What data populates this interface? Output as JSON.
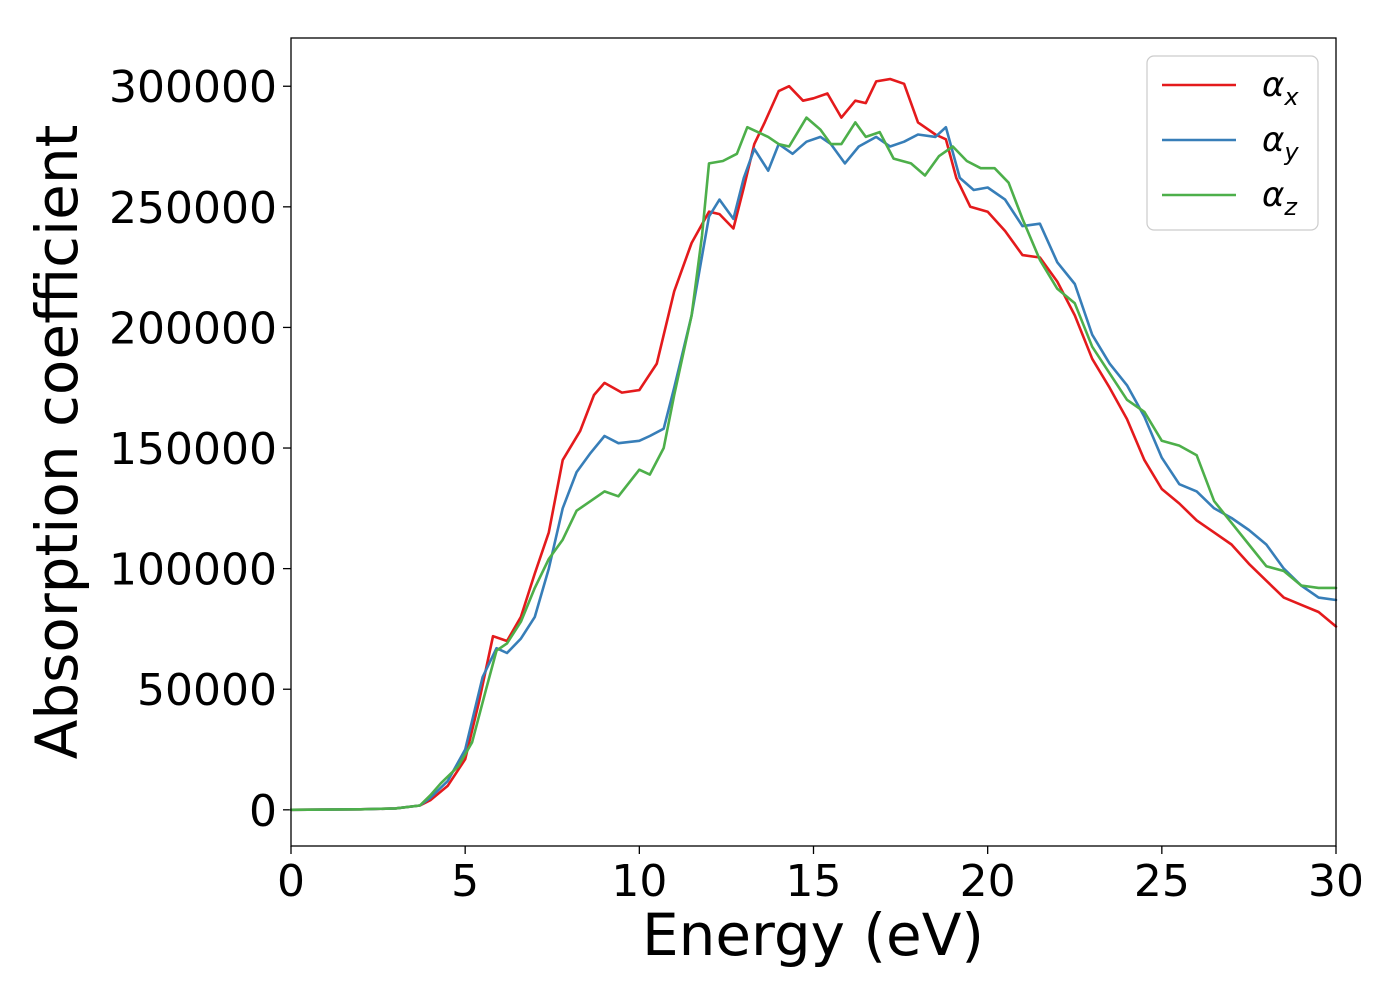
{
  "chart_data": {
    "type": "line",
    "title": "",
    "xlabel": "Energy (eV)",
    "ylabel": "Absorption coefficient",
    "xlim": [
      0,
      30
    ],
    "ylim": [
      -15000,
      320000
    ],
    "xticks": [
      0,
      5,
      10,
      15,
      20,
      25,
      30
    ],
    "yticks": [
      0,
      50000,
      100000,
      150000,
      200000,
      250000,
      300000
    ],
    "grid": false,
    "legend_position": "top-right",
    "series": [
      {
        "name": "αx",
        "symbol": "α",
        "subscript": "x",
        "color": "#e41a1c",
        "points": [
          [
            0,
            0
          ],
          [
            2,
            200
          ],
          [
            3,
            600
          ],
          [
            3.7,
            1800
          ],
          [
            4,
            4000
          ],
          [
            4.5,
            10000
          ],
          [
            5,
            21000
          ],
          [
            5.4,
            45000
          ],
          [
            5.8,
            72000
          ],
          [
            6.2,
            70000
          ],
          [
            6.6,
            80000
          ],
          [
            7,
            98000
          ],
          [
            7.4,
            115000
          ],
          [
            7.8,
            145000
          ],
          [
            8.3,
            157000
          ],
          [
            8.7,
            172000
          ],
          [
            9,
            177000
          ],
          [
            9.5,
            173000
          ],
          [
            10,
            174000
          ],
          [
            10.5,
            185000
          ],
          [
            11,
            215000
          ],
          [
            11.5,
            235000
          ],
          [
            12,
            248000
          ],
          [
            12.3,
            247000
          ],
          [
            12.7,
            241000
          ],
          [
            13,
            258000
          ],
          [
            13.3,
            276000
          ],
          [
            13.6,
            285000
          ],
          [
            14,
            298000
          ],
          [
            14.3,
            300000
          ],
          [
            14.7,
            294000
          ],
          [
            15,
            295000
          ],
          [
            15.4,
            297000
          ],
          [
            15.8,
            287000
          ],
          [
            16.2,
            294000
          ],
          [
            16.5,
            293000
          ],
          [
            16.8,
            302000
          ],
          [
            17.2,
            303000
          ],
          [
            17.6,
            301000
          ],
          [
            18,
            285000
          ],
          [
            18.5,
            280000
          ],
          [
            18.8,
            278000
          ],
          [
            19.1,
            262000
          ],
          [
            19.5,
            250000
          ],
          [
            20,
            248000
          ],
          [
            20.5,
            240000
          ],
          [
            21,
            230000
          ],
          [
            21.5,
            229000
          ],
          [
            22,
            219000
          ],
          [
            22.5,
            205000
          ],
          [
            23,
            187000
          ],
          [
            23.5,
            175000
          ],
          [
            24,
            162000
          ],
          [
            24.5,
            145000
          ],
          [
            25,
            133000
          ],
          [
            25.5,
            127000
          ],
          [
            26,
            120000
          ],
          [
            26.5,
            115000
          ],
          [
            27,
            110000
          ],
          [
            27.5,
            102000
          ],
          [
            28,
            95000
          ],
          [
            28.5,
            88000
          ],
          [
            29,
            85000
          ],
          [
            29.5,
            82000
          ],
          [
            30,
            76000
          ]
        ]
      },
      {
        "name": "αy",
        "symbol": "α",
        "subscript": "y",
        "color": "#377eb8",
        "points": [
          [
            0,
            0
          ],
          [
            2,
            200
          ],
          [
            3,
            600
          ],
          [
            3.7,
            1800
          ],
          [
            4,
            5000
          ],
          [
            4.5,
            12000
          ],
          [
            5,
            25000
          ],
          [
            5.5,
            55000
          ],
          [
            5.9,
            67000
          ],
          [
            6.2,
            65000
          ],
          [
            6.6,
            71000
          ],
          [
            7,
            80000
          ],
          [
            7.4,
            100000
          ],
          [
            7.8,
            125000
          ],
          [
            8.2,
            140000
          ],
          [
            8.6,
            148000
          ],
          [
            9,
            155000
          ],
          [
            9.4,
            152000
          ],
          [
            10,
            153000
          ],
          [
            10.3,
            155000
          ],
          [
            10.7,
            158000
          ],
          [
            11,
            175000
          ],
          [
            11.5,
            205000
          ],
          [
            12,
            246000
          ],
          [
            12.3,
            253000
          ],
          [
            12.7,
            245000
          ],
          [
            13,
            262000
          ],
          [
            13.3,
            274000
          ],
          [
            13.7,
            265000
          ],
          [
            14,
            276000
          ],
          [
            14.4,
            272000
          ],
          [
            14.8,
            277000
          ],
          [
            15.2,
            279000
          ],
          [
            15.5,
            276000
          ],
          [
            15.9,
            268000
          ],
          [
            16.3,
            275000
          ],
          [
            16.8,
            279000
          ],
          [
            17.2,
            275000
          ],
          [
            17.6,
            277000
          ],
          [
            18,
            280000
          ],
          [
            18.5,
            279000
          ],
          [
            18.8,
            283000
          ],
          [
            19.2,
            262000
          ],
          [
            19.6,
            257000
          ],
          [
            20,
            258000
          ],
          [
            20.5,
            253000
          ],
          [
            21,
            242000
          ],
          [
            21.5,
            243000
          ],
          [
            22,
            227000
          ],
          [
            22.5,
            218000
          ],
          [
            23,
            197000
          ],
          [
            23.5,
            185000
          ],
          [
            24,
            176000
          ],
          [
            24.5,
            163000
          ],
          [
            25,
            146000
          ],
          [
            25.5,
            135000
          ],
          [
            26,
            132000
          ],
          [
            26.5,
            125000
          ],
          [
            27,
            121000
          ],
          [
            27.5,
            116000
          ],
          [
            28,
            110000
          ],
          [
            28.5,
            100000
          ],
          [
            29,
            93000
          ],
          [
            29.5,
            88000
          ],
          [
            30,
            87000
          ]
        ]
      },
      {
        "name": "αz",
        "symbol": "α",
        "subscript": "z",
        "color": "#4daf4a",
        "points": [
          [
            0,
            0
          ],
          [
            2,
            200
          ],
          [
            3,
            600
          ],
          [
            3.7,
            1800
          ],
          [
            4,
            6000
          ],
          [
            4.3,
            11000
          ],
          [
            4.8,
            18000
          ],
          [
            5.2,
            28000
          ],
          [
            5.6,
            50000
          ],
          [
            5.9,
            66000
          ],
          [
            6.2,
            69000
          ],
          [
            6.6,
            78000
          ],
          [
            7,
            92000
          ],
          [
            7.4,
            104000
          ],
          [
            7.8,
            112000
          ],
          [
            8.2,
            124000
          ],
          [
            8.6,
            128000
          ],
          [
            9,
            132000
          ],
          [
            9.4,
            130000
          ],
          [
            10,
            141000
          ],
          [
            10.3,
            139000
          ],
          [
            10.7,
            150000
          ],
          [
            11,
            172000
          ],
          [
            11.5,
            205000
          ],
          [
            11.8,
            238000
          ],
          [
            12,
            268000
          ],
          [
            12.4,
            269000
          ],
          [
            12.8,
            272000
          ],
          [
            13.1,
            283000
          ],
          [
            13.4,
            281000
          ],
          [
            13.7,
            279000
          ],
          [
            14,
            276000
          ],
          [
            14.3,
            275000
          ],
          [
            14.8,
            287000
          ],
          [
            15.2,
            282000
          ],
          [
            15.5,
            276000
          ],
          [
            15.8,
            276000
          ],
          [
            16.2,
            285000
          ],
          [
            16.5,
            279000
          ],
          [
            16.9,
            281000
          ],
          [
            17.3,
            270000
          ],
          [
            17.8,
            268000
          ],
          [
            18.2,
            263000
          ],
          [
            18.6,
            271000
          ],
          [
            19,
            275000
          ],
          [
            19.4,
            269000
          ],
          [
            19.8,
            266000
          ],
          [
            20.2,
            266000
          ],
          [
            20.6,
            260000
          ],
          [
            21,
            245000
          ],
          [
            21.5,
            228000
          ],
          [
            22,
            216000
          ],
          [
            22.5,
            210000
          ],
          [
            23,
            192000
          ],
          [
            23.5,
            181000
          ],
          [
            24,
            170000
          ],
          [
            24.5,
            165000
          ],
          [
            25,
            153000
          ],
          [
            25.5,
            151000
          ],
          [
            26,
            147000
          ],
          [
            26.5,
            128000
          ],
          [
            27,
            119000
          ],
          [
            27.5,
            110000
          ],
          [
            28,
            101000
          ],
          [
            28.5,
            99000
          ],
          [
            29,
            93000
          ],
          [
            29.5,
            92000
          ],
          [
            30,
            92000
          ]
        ]
      }
    ]
  }
}
